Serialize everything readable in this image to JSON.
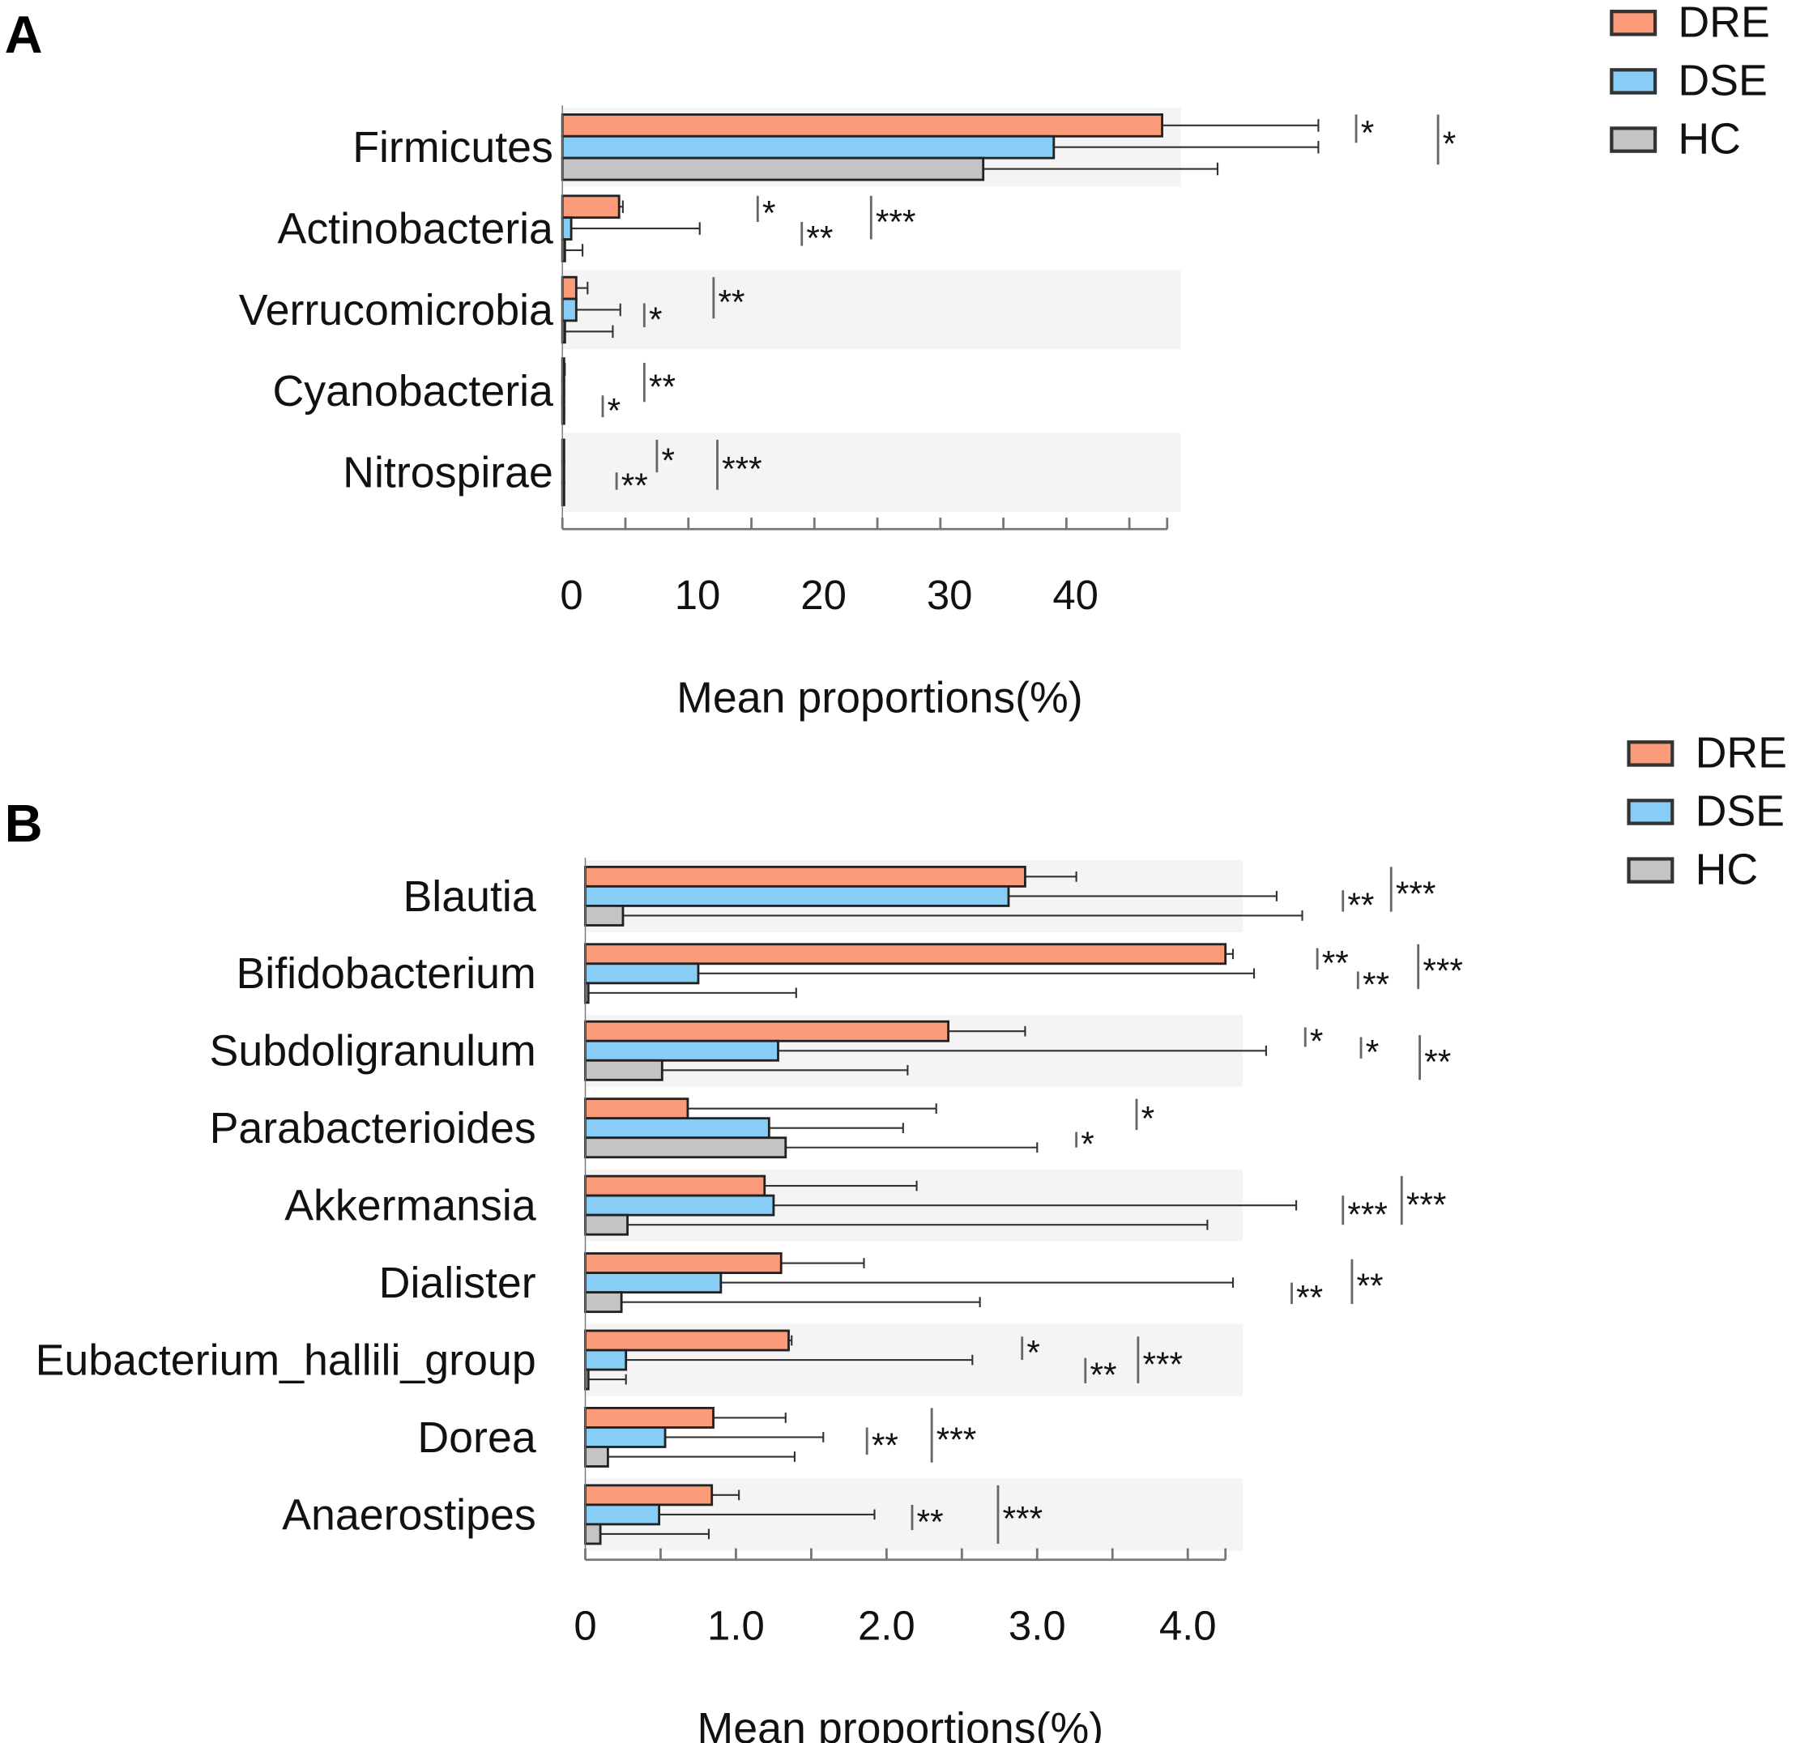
{
  "colors": {
    "DRE": "#fb9b7a",
    "DSE": "#87cdf5",
    "HC": "#c4c4c4",
    "band": "#f4f4f4",
    "stroke": "#222222"
  },
  "chart_data": [
    {
      "type": "bar",
      "orientation": "horizontal",
      "panel_label": "A",
      "xlabel": "Mean proportions(%)",
      "xlim": [
        0,
        48
      ],
      "xticks": [
        0,
        10,
        20,
        30,
        40
      ],
      "xtick_labels": [
        "0",
        "10",
        "20",
        "30",
        "40"
      ],
      "legend": {
        "placement": "top-right",
        "entries": [
          "DRE",
          "DSE",
          "HC"
        ]
      },
      "categories": [
        "Firmicutes",
        "Actinobacteria",
        "Verrucomicrobia",
        "Cyanobacteria",
        "Nitrospirae"
      ],
      "series": [
        {
          "name": "DRE",
          "values": [
            47.6,
            4.5,
            1.1,
            0.1,
            0.05
          ],
          "err_upper": [
            60,
            4.8,
            2.0,
            0.2,
            0.1
          ]
        },
        {
          "name": "DSE",
          "values": [
            39.0,
            0.7,
            1.1,
            0.1,
            0.05
          ],
          "err_upper": [
            60,
            10.9,
            4.6,
            0.15,
            0.1
          ]
        },
        {
          "name": "HC",
          "values": [
            33.4,
            0.2,
            0.2,
            0.05,
            0.05
          ],
          "err_upper": [
            52,
            1.6,
            4.0,
            0.15,
            0.1
          ]
        }
      ],
      "significance": [
        {
          "row": 0,
          "label": "*",
          "x": 63,
          "from": 0,
          "to": 1
        },
        {
          "row": 0,
          "label": "*",
          "x": 69.5,
          "from": 0,
          "to": 2
        },
        {
          "row": 1,
          "label": "*",
          "x": 15.5,
          "from": 0,
          "to": 0.9
        },
        {
          "row": 1,
          "label": "**",
          "x": 19,
          "from": 1.2,
          "to": 2
        },
        {
          "row": 1,
          "label": "***",
          "x": 24.5,
          "from": 0,
          "to": 1.7
        },
        {
          "row": 2,
          "label": "*",
          "x": 6.5,
          "from": 1.2,
          "to": 2
        },
        {
          "row": 2,
          "label": "**",
          "x": 12,
          "from": 0,
          "to": 1.6
        },
        {
          "row": 3,
          "label": "**",
          "x": 6.5,
          "from": 0.2,
          "to": 1.7
        },
        {
          "row": 3,
          "label": "*",
          "x": 3.2,
          "from": 1.7,
          "to": 2.4
        },
        {
          "row": 4,
          "label": "*",
          "x": 7.5,
          "from": 0,
          "to": 1.2
        },
        {
          "row": 4,
          "label": "**",
          "x": 4.3,
          "from": 1.5,
          "to": 2
        },
        {
          "row": 4,
          "label": "***",
          "x": 12.3,
          "from": 0,
          "to": 2
        }
      ]
    },
    {
      "type": "bar",
      "orientation": "horizontal",
      "panel_label": "B",
      "xlabel": "Mean proportions(%)",
      "xlim": [
        0,
        4.25
      ],
      "xticks": [
        0,
        1,
        2,
        3,
        4
      ],
      "xtick_labels": [
        "0",
        "1.0",
        "2.0",
        "3.0",
        "4.0"
      ],
      "legend": {
        "placement": "top-right",
        "entries": [
          "DRE",
          "DSE",
          "HC"
        ]
      },
      "categories": [
        "Blautia",
        "Bifidobacterium",
        "Subdoligranulum",
        "Parabacterioides",
        "Akkermansia",
        "Dialister",
        "Eubacterium_hallili_group",
        "Dorea",
        "Anaerostipes"
      ],
      "series": [
        {
          "name": "DRE",
          "values": [
            2.92,
            4.25,
            2.41,
            0.68,
            1.19,
            1.3,
            1.35,
            0.85,
            0.84
          ],
          "err_upper": [
            3.26,
            4.3,
            2.92,
            2.33,
            2.2,
            1.85,
            1.37,
            1.33,
            1.02
          ]
        },
        {
          "name": "DSE",
          "values": [
            2.81,
            0.75,
            1.28,
            1.22,
            1.25,
            0.9,
            0.27,
            0.53,
            0.49
          ],
          "err_upper": [
            4.59,
            4.44,
            4.52,
            2.11,
            4.72,
            4.3,
            2.57,
            1.58,
            1.92
          ]
        },
        {
          "name": "HC",
          "values": [
            0.25,
            0.02,
            0.51,
            1.33,
            0.28,
            0.24,
            0.02,
            0.15,
            0.1
          ],
          "err_upper": [
            4.76,
            1.4,
            2.14,
            3.0,
            4.13,
            2.62,
            0.27,
            1.39,
            0.82
          ]
        }
      ],
      "significance": [
        {
          "row": 0,
          "label": "**",
          "x": 5.03,
          "from": 1.2,
          "to": 2
        },
        {
          "row": 0,
          "label": "***",
          "x": 5.35,
          "from": 0,
          "to": 2
        },
        {
          "row": 1,
          "label": "**",
          "x": 4.86,
          "from": 0.2,
          "to": 1
        },
        {
          "row": 1,
          "label": "**",
          "x": 5.13,
          "from": 1.4,
          "to": 2
        },
        {
          "row": 1,
          "label": "***",
          "x": 5.53,
          "from": 0,
          "to": 2
        },
        {
          "row": 2,
          "label": "*",
          "x": 4.78,
          "from": 0.3,
          "to": 1
        },
        {
          "row": 2,
          "label": "*",
          "x": 5.15,
          "from": 0.8,
          "to": 1.6
        },
        {
          "row": 2,
          "label": "**",
          "x": 5.54,
          "from": 0.7,
          "to": 2.7
        },
        {
          "row": 3,
          "label": "*",
          "x": 3.26,
          "from": 1.7,
          "to": 2.2
        },
        {
          "row": 3,
          "label": "*",
          "x": 3.66,
          "from": 0,
          "to": 1.3
        },
        {
          "row": 4,
          "label": "***",
          "x": 5.03,
          "from": 1,
          "to": 2.2
        },
        {
          "row": 4,
          "label": "***",
          "x": 5.42,
          "from": 0,
          "to": 2.2
        },
        {
          "row": 5,
          "label": "**",
          "x": 4.69,
          "from": 1.5,
          "to": 2.3
        },
        {
          "row": 5,
          "label": "**",
          "x": 5.09,
          "from": 0.3,
          "to": 2.3
        },
        {
          "row": 6,
          "label": "*",
          "x": 2.9,
          "from": 0.3,
          "to": 1.2
        },
        {
          "row": 6,
          "label": "**",
          "x": 3.32,
          "from": 1.4,
          "to": 2.4
        },
        {
          "row": 6,
          "label": "***",
          "x": 3.67,
          "from": 0.3,
          "to": 2.4
        },
        {
          "row": 7,
          "label": "**",
          "x": 1.87,
          "from": 1,
          "to": 2.1
        },
        {
          "row": 7,
          "label": "***",
          "x": 2.3,
          "from": 0,
          "to": 2.5
        },
        {
          "row": 8,
          "label": "**",
          "x": 2.17,
          "from": 1,
          "to": 2
        },
        {
          "row": 8,
          "label": "***",
          "x": 2.74,
          "from": 0,
          "to": 2.7
        }
      ]
    }
  ]
}
